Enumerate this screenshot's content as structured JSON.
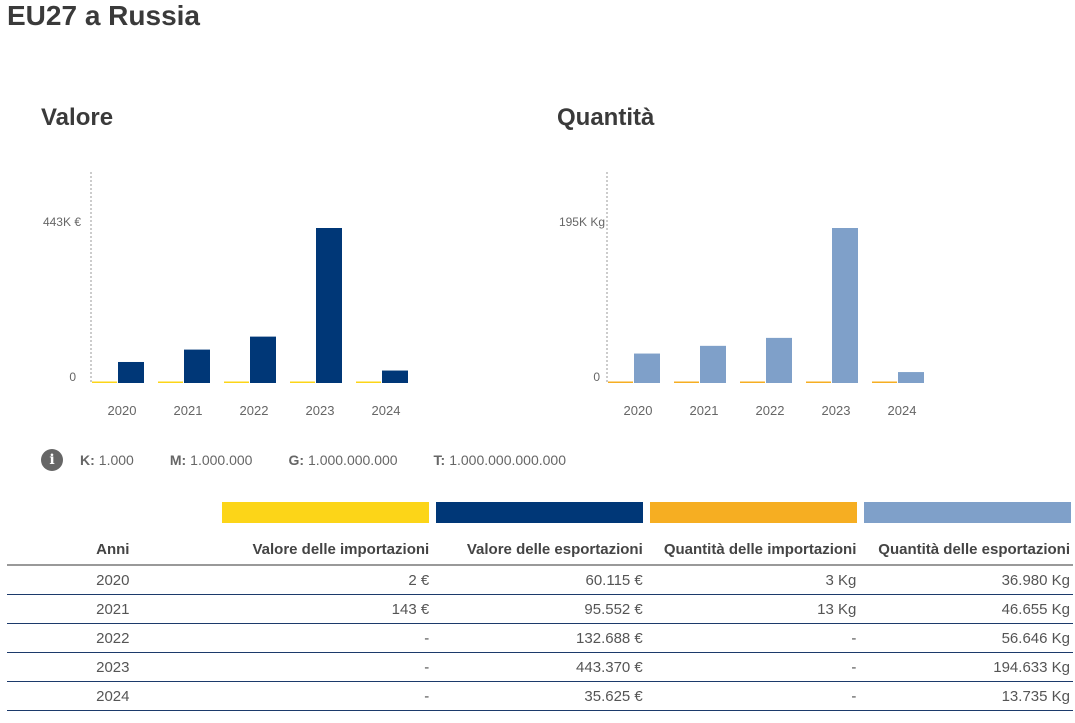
{
  "page": {
    "title": "EU27 a Russia"
  },
  "colors": {
    "import_value": "#FCD518",
    "export_value": "#003777",
    "import_quantity": "#F6AE22",
    "export_quantity": "#7FA0C9",
    "axis": "#999999",
    "text": "#555555"
  },
  "chart_data": [
    {
      "type": "bar",
      "title": "Valore",
      "categories": [
        "2020",
        "2021",
        "2022",
        "2023",
        "2024"
      ],
      "series": [
        {
          "name": "Valore delle importazioni",
          "color": "#FCD518",
          "values": [
            2,
            143,
            0,
            0,
            0
          ]
        },
        {
          "name": "Valore delle esportazioni",
          "color": "#003777",
          "values": [
            60115,
            95552,
            132688,
            443370,
            35625
          ]
        }
      ],
      "yticks": [
        {
          "value": 0,
          "label": "0"
        },
        {
          "value": 443370,
          "label": "443K €"
        }
      ],
      "ylim": [
        0,
        443370
      ],
      "xlabel": "",
      "ylabel": "",
      "grid": false,
      "legend": "none"
    },
    {
      "type": "bar",
      "title": "Quantità",
      "categories": [
        "2020",
        "2021",
        "2022",
        "2023",
        "2024"
      ],
      "series": [
        {
          "name": "Quantità delle importazioni",
          "color": "#F6AE22",
          "values": [
            3,
            13,
            0,
            0,
            0
          ]
        },
        {
          "name": "Quantità delle esportazioni",
          "color": "#7FA0C9",
          "values": [
            36980,
            46655,
            56646,
            194633,
            13735
          ]
        }
      ],
      "yticks": [
        {
          "value": 0,
          "label": "0"
        },
        {
          "value": 194633,
          "label": "195K Kg"
        }
      ],
      "ylim": [
        0,
        194633
      ],
      "xlabel": "",
      "ylabel": "",
      "grid": false,
      "legend": "none"
    }
  ],
  "units_legend": {
    "icon": "info-icon",
    "icon_glyph": "i",
    "items": [
      {
        "key": "K:",
        "value": "1.000"
      },
      {
        "key": "M:",
        "value": "1.000.000"
      },
      {
        "key": "G:",
        "value": "1.000.000.000"
      },
      {
        "key": "T:",
        "value": "1.000.000.000.000"
      }
    ]
  },
  "table": {
    "headers": [
      "Anni",
      "Valore delle importazioni",
      "Valore delle esportazioni",
      "Quantità delle importazioni",
      "Quantità delle esportazioni"
    ],
    "rows": [
      [
        "2020",
        "2 €",
        "60.115 €",
        "3 Kg",
        "36.980 Kg"
      ],
      [
        "2021",
        "143 €",
        "95.552 €",
        "13 Kg",
        "46.655 Kg"
      ],
      [
        "2022",
        "-",
        "132.688 €",
        "-",
        "56.646 Kg"
      ],
      [
        "2023",
        "-",
        "443.370 €",
        "-",
        "194.633 Kg"
      ],
      [
        "2024",
        "-",
        "35.625 €",
        "-",
        "13.735 Kg"
      ]
    ]
  }
}
